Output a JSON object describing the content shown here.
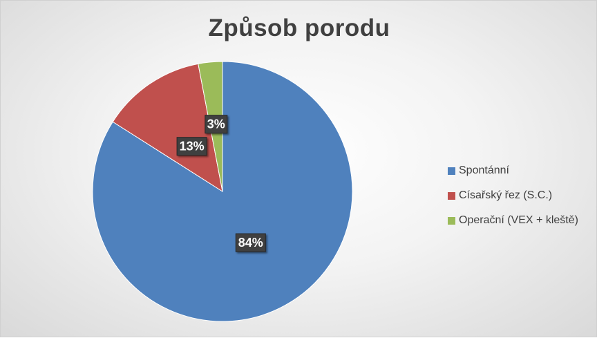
{
  "chart_data": {
    "type": "pie",
    "title": "Způsob porodu",
    "categories": [
      "Spontánní",
      "Císařský řez (S.C.)",
      "Operační (VEX + kleště)"
    ],
    "values": [
      84,
      13,
      3
    ],
    "data_labels": [
      "84%",
      "13%",
      "3%"
    ],
    "colors": [
      "#4f81bd",
      "#c0504d",
      "#9bbb59"
    ],
    "legend_position": "right"
  }
}
